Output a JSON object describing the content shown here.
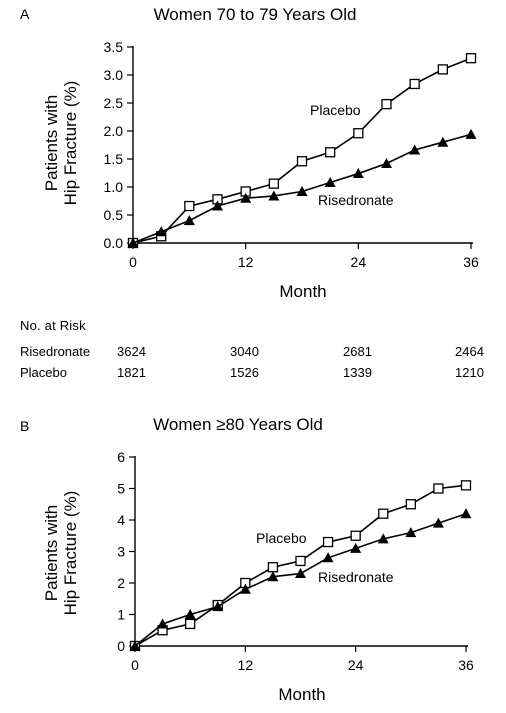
{
  "chart_data": [
    {
      "type": "line",
      "panel_label": "A",
      "title": "Women 70 to 79 Years Old",
      "xlabel": "Month",
      "ylabel_line1": "Patients with",
      "ylabel_line2": "Hip Fracture (%)",
      "xlim": [
        0,
        36
      ],
      "ylim": [
        0,
        3.5
      ],
      "xticks": [
        0,
        12,
        24,
        36
      ],
      "yticks": [
        0.0,
        0.5,
        1.0,
        1.5,
        2.0,
        2.5,
        3.0,
        3.5
      ],
      "ytick_labels": [
        "0.0",
        "0.5",
        "1.0",
        "1.5",
        "2.0",
        "2.5",
        "3.0",
        "3.5"
      ],
      "grid": false,
      "series": [
        {
          "name": "Placebo",
          "marker": "open-square",
          "x": [
            0,
            3,
            6,
            9,
            12,
            15,
            18,
            21,
            24,
            27,
            30,
            33,
            36
          ],
          "values": [
            0.0,
            0.12,
            0.66,
            0.78,
            0.92,
            1.06,
            1.46,
            1.62,
            1.96,
            2.48,
            2.84,
            3.1,
            3.3
          ]
        },
        {
          "name": "Risedronate",
          "marker": "filled-triangle",
          "x": [
            0,
            3,
            6,
            9,
            12,
            15,
            18,
            21,
            24,
            27,
            30,
            33,
            36
          ],
          "values": [
            0.0,
            0.2,
            0.4,
            0.66,
            0.8,
            0.84,
            0.92,
            1.08,
            1.24,
            1.42,
            1.66,
            1.8,
            1.94
          ]
        }
      ],
      "number_at_risk": {
        "header": "No. at Risk",
        "rows": [
          {
            "label": "Risedronate",
            "values": [
              "3624",
              "3040",
              "2681",
              "2464"
            ]
          },
          {
            "label": "Placebo",
            "values": [
              "1821",
              "1526",
              "1339",
              "1210"
            ]
          }
        ]
      }
    },
    {
      "type": "line",
      "panel_label": "B",
      "title": "Women ≥80 Years Old",
      "xlabel": "Month",
      "ylabel_line1": "Patients with",
      "ylabel_line2": "Hip Fracture (%)",
      "xlim": [
        0,
        36
      ],
      "ylim": [
        0,
        6
      ],
      "xticks": [
        0,
        12,
        24,
        36
      ],
      "yticks": [
        0,
        1,
        2,
        3,
        4,
        5,
        6
      ],
      "ytick_labels": [
        "0",
        "1",
        "2",
        "3",
        "4",
        "5",
        "6"
      ],
      "grid": false,
      "series": [
        {
          "name": "Placebo",
          "marker": "open-square",
          "x": [
            0,
            3,
            6,
            9,
            12,
            15,
            18,
            21,
            24,
            27,
            30,
            33,
            36
          ],
          "values": [
            0.0,
            0.5,
            0.7,
            1.3,
            2.0,
            2.5,
            2.7,
            3.3,
            3.5,
            4.2,
            4.5,
            5.0,
            5.1
          ]
        },
        {
          "name": "Risedronate",
          "marker": "filled-triangle",
          "x": [
            0,
            3,
            6,
            9,
            12,
            15,
            18,
            21,
            24,
            27,
            30,
            33,
            36
          ],
          "values": [
            0.0,
            0.7,
            1.0,
            1.25,
            1.8,
            2.2,
            2.3,
            2.8,
            3.1,
            3.4,
            3.6,
            3.9,
            4.2
          ]
        }
      ]
    }
  ]
}
